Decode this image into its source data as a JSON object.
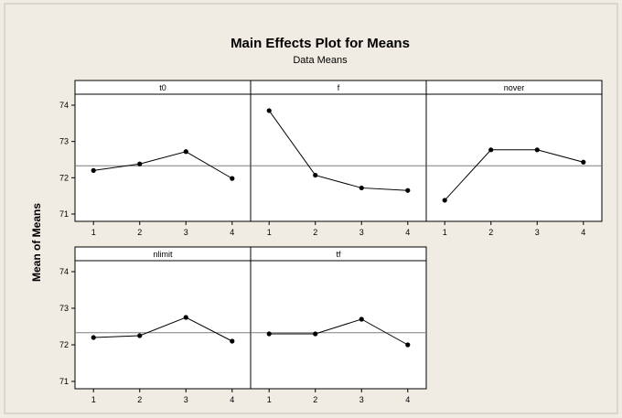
{
  "title": "Main Effects Plot for Means",
  "subtitle": "Data Means",
  "ylabel": "Mean of Means",
  "colors": {
    "background": "#f1ece3",
    "panel": "#ffffff",
    "line": "#000000",
    "refline": "#7f7f7f",
    "text": "#000000"
  },
  "chart_data": {
    "type": "line",
    "title": "Main Effects Plot for Means",
    "subtitle": "Data Means",
    "ylabel": "Mean of Means",
    "xlabel": "",
    "ylim": [
      71,
      74
    ],
    "yticks": [
      71,
      72,
      73,
      74
    ],
    "x": [
      1,
      2,
      3,
      4
    ],
    "mean_line": 72.33,
    "grid": false,
    "panels": [
      {
        "name": "t0",
        "values": [
          72.2,
          72.38,
          72.72,
          71.98
        ]
      },
      {
        "name": "f",
        "values": [
          73.85,
          72.07,
          71.72,
          71.65
        ]
      },
      {
        "name": "nover",
        "values": [
          71.38,
          72.77,
          72.77,
          72.43
        ]
      },
      {
        "name": "nlimit",
        "values": [
          72.2,
          72.25,
          72.75,
          72.1
        ]
      },
      {
        "name": "tf",
        "values": [
          72.3,
          72.3,
          72.7,
          72.0
        ]
      }
    ]
  }
}
